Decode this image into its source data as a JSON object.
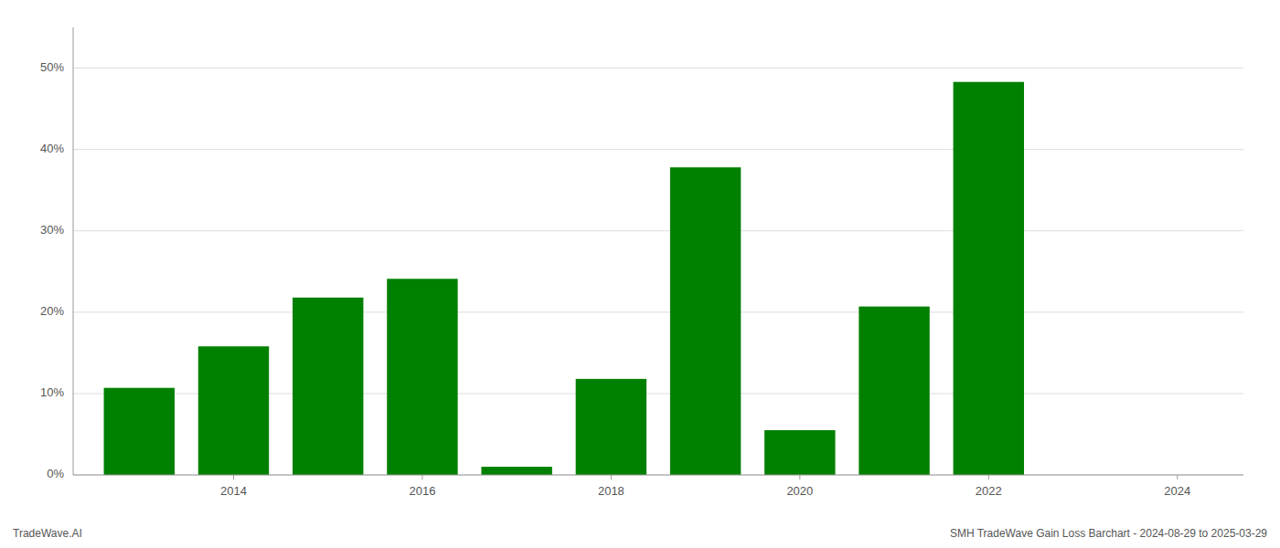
{
  "chart_data": {
    "type": "bar",
    "x": [
      2013,
      2014,
      2015,
      2016,
      2017,
      2018,
      2019,
      2020,
      2021,
      2022,
      2023
    ],
    "values": [
      10.7,
      15.8,
      21.8,
      24.1,
      1.0,
      11.8,
      37.8,
      5.5,
      20.7,
      48.3,
      0.0
    ],
    "color": "#008000",
    "xlim": [
      2012.3,
      2024.7
    ],
    "xticks": [
      2014,
      2016,
      2018,
      2020,
      2022,
      2024
    ],
    "ylim": [
      0,
      55
    ],
    "yticks": [
      {
        "value": 0,
        "label": "0%"
      },
      {
        "value": 10,
        "label": "10%"
      },
      {
        "value": 20,
        "label": "20%"
      },
      {
        "value": 30,
        "label": "30%"
      },
      {
        "value": 40,
        "label": "40%"
      },
      {
        "value": 50,
        "label": "50%"
      }
    ],
    "grid": true,
    "annotations": [
      "TradeWave.AI",
      "SMH TradeWave Gain Loss Barchart - 2024-08-29 to 2025-03-29"
    ]
  }
}
